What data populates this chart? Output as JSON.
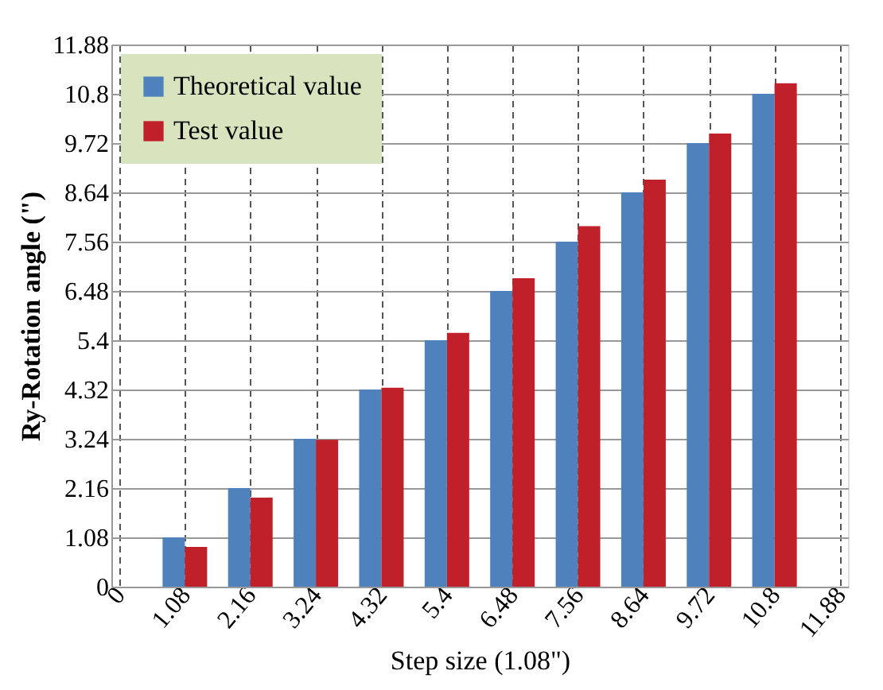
{
  "chart_data": {
    "type": "bar",
    "xlabel": "Step size (1.08\")",
    "ylabel": "Ry-Rotation angle (\")",
    "x": [
      1.08,
      2.16,
      3.24,
      4.32,
      5.4,
      6.48,
      7.56,
      8.64,
      9.72,
      10.8
    ],
    "series": [
      {
        "name": "Theoretical value",
        "color": "#4f81bd",
        "values": [
          1.08,
          2.16,
          3.24,
          4.32,
          5.4,
          6.48,
          7.56,
          8.64,
          9.72,
          10.8
        ]
      },
      {
        "name": "Test value",
        "color": "#c0202a",
        "values": [
          0.87,
          1.95,
          3.22,
          4.36,
          5.56,
          6.76,
          7.9,
          8.92,
          9.93,
          11.03
        ]
      }
    ],
    "xlim": [
      0,
      11.88
    ],
    "xticks": [
      0,
      1.08,
      2.16,
      3.24,
      4.32,
      5.4,
      6.48,
      7.56,
      8.64,
      9.72,
      10.8,
      11.88
    ],
    "ylim": [
      0,
      11.88
    ],
    "yticks": [
      0,
      1.08,
      2.16,
      3.24,
      4.32,
      5.4,
      6.48,
      7.56,
      8.64,
      9.72,
      10.8,
      11.88
    ],
    "grid": true,
    "legend": "top left"
  }
}
